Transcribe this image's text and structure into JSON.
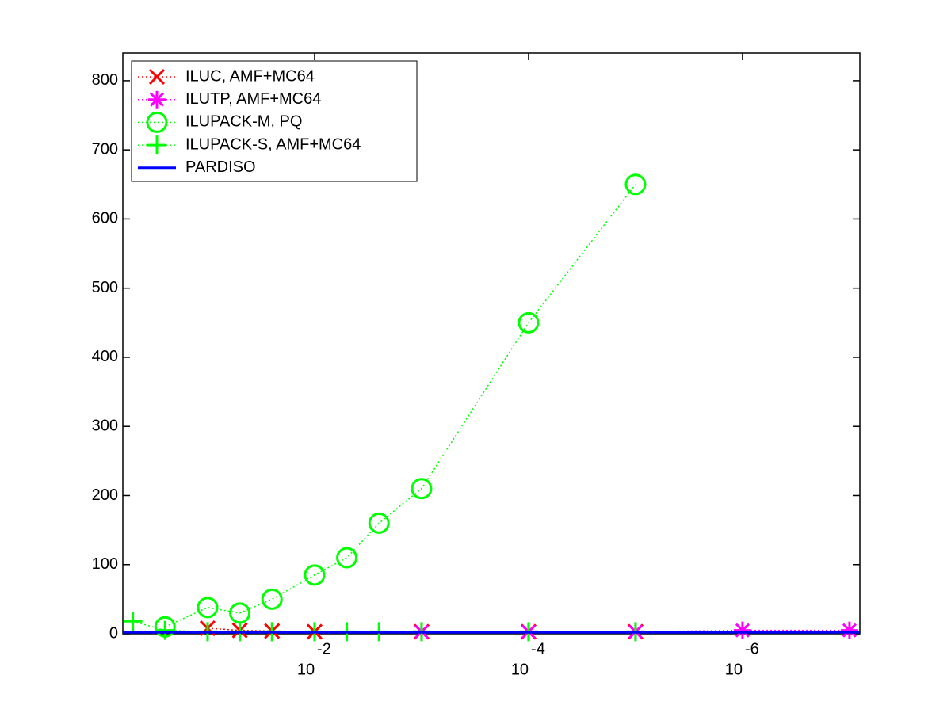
{
  "chart_data": {
    "type": "line",
    "xscale": "log",
    "xlim": [
      0.62,
      8e-08
    ],
    "ylim": [
      0,
      840
    ],
    "xticks": [
      {
        "value": 0.01,
        "label": "10",
        "exponent": "-2"
      },
      {
        "value": 0.0001,
        "label": "10",
        "exponent": "-4"
      },
      {
        "value": 1e-06,
        "label": "10",
        "exponent": "-6"
      }
    ],
    "yticks": [
      0,
      100,
      200,
      300,
      400,
      500,
      600,
      700,
      800
    ],
    "legend": "upper left",
    "series": [
      {
        "name": "ILUC, AMF+MC64",
        "color": "#ff0000",
        "marker": "x",
        "linestyle": "dotted",
        "x": [
          0.1,
          0.05,
          0.025,
          0.01,
          0.001,
          0.0001,
          1e-05
        ],
        "values": [
          8,
          5,
          4,
          3,
          3,
          3,
          3
        ]
      },
      {
        "name": "ILUTP, AMF+MC64",
        "color": "#ff00ff",
        "marker": "*",
        "linestyle": "dotted",
        "x": [
          0.001,
          0.0001,
          1e-05,
          1e-06,
          1e-07
        ],
        "values": [
          3,
          3,
          3,
          5,
          5
        ]
      },
      {
        "name": "ILUPACK-M, PQ",
        "color": "#00ff00",
        "marker": "o",
        "linestyle": "dotted",
        "x": [
          0.25,
          0.1,
          0.05,
          0.025,
          0.01,
          0.005,
          0.0025,
          0.001,
          0.0001,
          1e-05
        ],
        "values": [
          10,
          38,
          30,
          50,
          85,
          110,
          160,
          210,
          450,
          650
        ]
      },
      {
        "name": "ILUPACK-S, AMF+MC64",
        "color": "#00ff00",
        "marker": "+",
        "linestyle": "dotted",
        "x": [
          0.5,
          0.25,
          0.1,
          0.05,
          0.025,
          0.01,
          0.005,
          0.0025,
          0.001,
          0.0001,
          1e-05
        ],
        "values": [
          18,
          5,
          3,
          3,
          3,
          3,
          3,
          3,
          3,
          3,
          3
        ]
      },
      {
        "name": "PARDISO",
        "color": "#0000ff",
        "marker": null,
        "linestyle": "solid",
        "x": [
          0.62,
          8e-08
        ],
        "values": [
          2,
          2
        ]
      }
    ]
  }
}
